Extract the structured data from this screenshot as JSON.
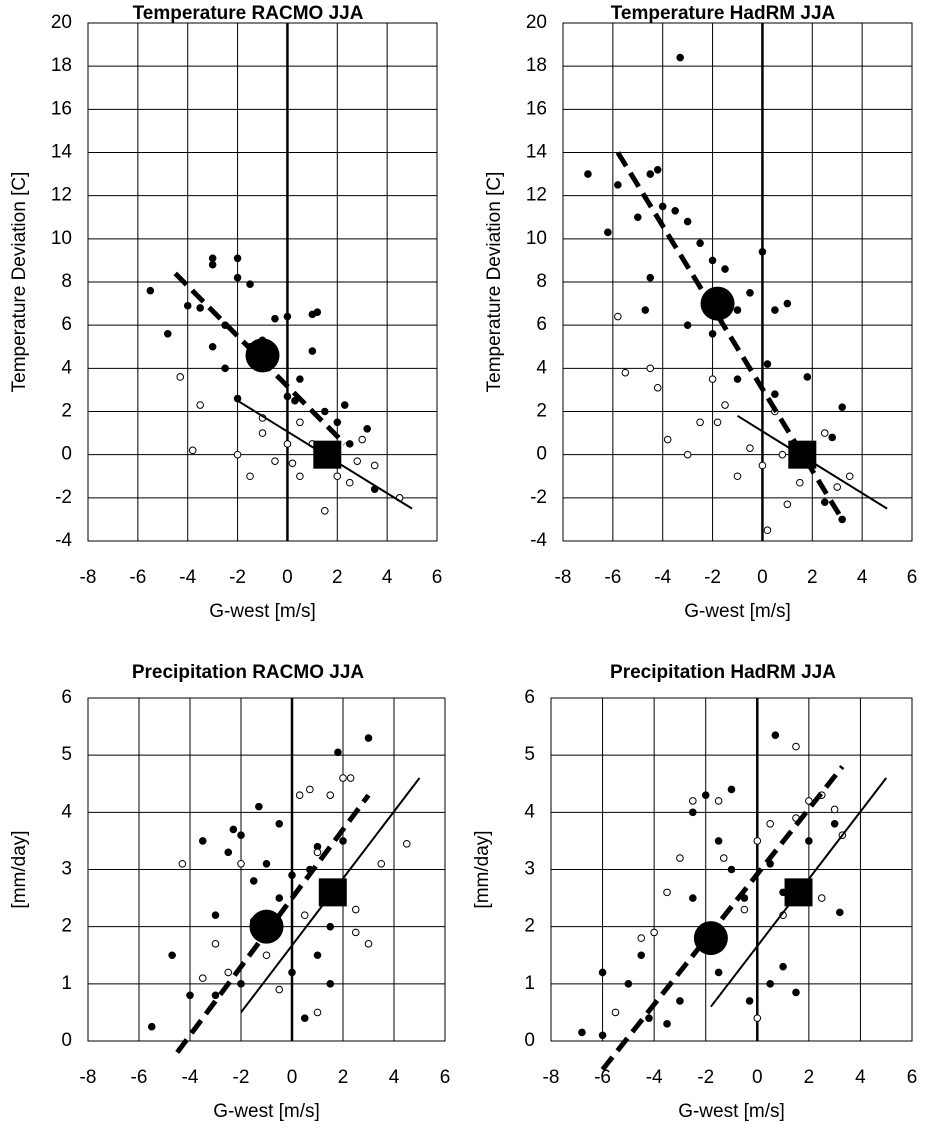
{
  "chart_data": [
    {
      "type": "scatter",
      "title": "Temperature RACMO  JJA",
      "xlabel": "G-west  [m/s]",
      "ylabel": "Temperature Deviation  [C]",
      "xlim": [
        -8,
        6
      ],
      "xticks": [
        -8,
        -6,
        -4,
        -2,
        0,
        2,
        4,
        6
      ],
      "ylim": [
        -4,
        20
      ],
      "yticks": [
        -4,
        -2,
        0,
        2,
        4,
        6,
        8,
        10,
        12,
        14,
        16,
        18,
        20
      ],
      "grid": true,
      "series": [
        {
          "marker": "filled",
          "color": "#000000",
          "x": [
            -5.5,
            -4.8,
            -4,
            -3.5,
            -3,
            -3,
            -2.5,
            -2,
            -2,
            -1.5,
            -1.5,
            -2.5,
            -3,
            -1,
            -0.5,
            0,
            1,
            1.2,
            0.5,
            0,
            1.5,
            2,
            2.3,
            3.2,
            3.5,
            1,
            -2,
            -1,
            0.3,
            2.5
          ],
          "y": [
            7.6,
            5.6,
            6.9,
            6.8,
            9.1,
            8.8,
            6,
            9.1,
            8.2,
            7.9,
            5,
            4,
            5,
            5.3,
            6.3,
            6.4,
            6.5,
            6.6,
            3.5,
            2.7,
            2,
            1.5,
            2.3,
            1.2,
            -1.6,
            4.8,
            2.6,
            4,
            2.5,
            0.5
          ]
        },
        {
          "marker": "open",
          "color": "#000000",
          "x": [
            -4.3,
            -3.8,
            -3.5,
            -2,
            -1.5,
            -1,
            -0.5,
            0,
            0.5,
            0.5,
            1,
            2,
            2.5,
            3,
            3.5,
            4.5,
            1.5,
            -1,
            0.2,
            2.8
          ],
          "y": [
            3.6,
            0.2,
            2.3,
            0,
            -1,
            1,
            -0.3,
            0.5,
            -1,
            1.5,
            0.5,
            -1,
            -1.3,
            0.7,
            -0.5,
            -2,
            -2.6,
            1.7,
            -0.4,
            -0.3
          ]
        },
        {
          "marker": "dashed-line",
          "color": "#000000",
          "x": [
            -4.5,
            2.3
          ],
          "y": [
            8.4,
            0.5
          ]
        },
        {
          "marker": "solid-line",
          "color": "#000000",
          "x": [
            -2,
            5
          ],
          "y": [
            2.5,
            -2.5
          ]
        },
        {
          "marker": "big-circle",
          "color": "#000000",
          "x": [
            -1
          ],
          "y": [
            4.6
          ]
        },
        {
          "marker": "big-square",
          "color": "#000000",
          "x": [
            1.6
          ],
          "y": [
            0
          ]
        }
      ]
    },
    {
      "type": "scatter",
      "title": "Temperature HadRM  JJA",
      "xlabel": "G-west  [m/s]",
      "ylabel": "Temperature Deviation  [C]",
      "xlim": [
        -8,
        6
      ],
      "xticks": [
        -8,
        -6,
        -4,
        -2,
        0,
        2,
        4,
        6
      ],
      "ylim": [
        -4,
        20
      ],
      "yticks": [
        -4,
        -2,
        0,
        2,
        4,
        6,
        8,
        10,
        12,
        14,
        16,
        18,
        20
      ],
      "grid": true,
      "series": [
        {
          "marker": "filled",
          "color": "#000000",
          "x": [
            -7,
            -6.2,
            -5.8,
            -5,
            -4.5,
            -4.2,
            -3.3,
            -4,
            -3.5,
            -4.5,
            -3,
            -2.5,
            -2,
            -1.5,
            -0.5,
            0,
            -1,
            -2,
            0.5,
            1,
            1.8,
            0.2,
            -3,
            -4.7,
            2.8,
            3.2,
            3.2,
            2.5,
            -1,
            0.5
          ],
          "y": [
            13,
            10.3,
            12.5,
            11,
            13,
            13.2,
            18.4,
            11.5,
            11.3,
            8.2,
            10.8,
            9.8,
            9,
            8.6,
            7.5,
            9.4,
            6.7,
            5.6,
            6.7,
            7,
            3.6,
            4.2,
            6,
            6.7,
            0.8,
            2.2,
            -3,
            -2.2,
            3.5,
            2.8
          ]
        },
        {
          "marker": "open",
          "color": "#000000",
          "x": [
            -5.8,
            -5.5,
            -4.2,
            -4.5,
            -3.8,
            -3,
            -2.5,
            -2,
            -1.8,
            -1.5,
            -1,
            -0.5,
            0,
            0.5,
            0.8,
            1.5,
            2,
            2.5,
            3,
            3.5,
            0.2,
            1
          ],
          "y": [
            6.4,
            3.8,
            3.1,
            4,
            0.7,
            0,
            1.5,
            3.5,
            1.5,
            2.3,
            -1,
            0.3,
            -0.5,
            2,
            0,
            -1.3,
            -0.5,
            1,
            -1.5,
            -1,
            -3.5,
            -2.3
          ]
        },
        {
          "marker": "dashed-line",
          "color": "#000000",
          "x": [
            -5.8,
            3.2
          ],
          "y": [
            14,
            -3
          ]
        },
        {
          "marker": "solid-line",
          "color": "#000000",
          "x": [
            -1,
            5
          ],
          "y": [
            1.8,
            -2.5
          ]
        },
        {
          "marker": "big-circle",
          "color": "#000000",
          "x": [
            -1.8
          ],
          "y": [
            7
          ]
        },
        {
          "marker": "big-square",
          "color": "#000000",
          "x": [
            1.6
          ],
          "y": [
            0
          ]
        }
      ]
    },
    {
      "type": "scatter",
      "title": "Precipitation RACMO JJA",
      "xlabel": "G-west  [m/s]",
      "ylabel": "[mm/day]",
      "xlim": [
        -8,
        6
      ],
      "xticks": [
        -8,
        -6,
        -4,
        -2,
        0,
        2,
        4,
        6
      ],
      "ylim": [
        0,
        6
      ],
      "yticks": [
        0,
        1,
        2,
        3,
        4,
        5,
        6
      ],
      "grid": true,
      "series": [
        {
          "marker": "filled",
          "color": "#000000",
          "x": [
            -5.5,
            -4.7,
            -3.5,
            -3,
            -3,
            -2.5,
            -2.3,
            -2,
            -1.5,
            -1.3,
            -1,
            -0.5,
            -0.5,
            0,
            0,
            0.5,
            1,
            1,
            1.5,
            1.8,
            2,
            3,
            1.5,
            -2,
            -4,
            0.7
          ],
          "y": [
            0.25,
            1.5,
            3.5,
            0.8,
            2.2,
            3.3,
            3.7,
            3.6,
            2.8,
            4.1,
            3.1,
            2.5,
            3.8,
            1.2,
            2.9,
            0.4,
            1.5,
            3.4,
            2,
            5.05,
            3.5,
            5.3,
            1,
            1,
            0.8,
            3
          ]
        },
        {
          "marker": "open",
          "color": "#000000",
          "x": [
            -4.3,
            -3.5,
            -3,
            -2.5,
            -2,
            -1.5,
            -1,
            0.3,
            0.7,
            1,
            1.5,
            2,
            2.3,
            2.5,
            3,
            3.5,
            4.5,
            2.5,
            0.5,
            -0.5,
            1
          ],
          "y": [
            3.1,
            1.1,
            1.7,
            1.2,
            3.1,
            2.1,
            1.5,
            4.3,
            4.4,
            3.3,
            4.3,
            4.6,
            4.6,
            1.9,
            1.7,
            3.1,
            3.45,
            2.3,
            2.2,
            0.9,
            0.5
          ]
        },
        {
          "marker": "dashed-line",
          "color": "#000000",
          "x": [
            -4.5,
            3
          ],
          "y": [
            -0.2,
            4.3
          ]
        },
        {
          "marker": "solid-line",
          "color": "#000000",
          "x": [
            -2,
            5
          ],
          "y": [
            0.5,
            4.6
          ]
        },
        {
          "marker": "big-circle",
          "color": "#000000",
          "x": [
            -1
          ],
          "y": [
            2
          ]
        },
        {
          "marker": "big-square",
          "color": "#000000",
          "x": [
            1.6
          ],
          "y": [
            2.6
          ]
        }
      ]
    },
    {
      "type": "scatter",
      "title": "Precipitation HadRM  JJA",
      "xlabel": "G-west  [m/s]",
      "ylabel": "[mm/day]",
      "xlim": [
        -8,
        6
      ],
      "xticks": [
        -8,
        -6,
        -4,
        -2,
        0,
        2,
        4,
        6
      ],
      "ylim": [
        0,
        6
      ],
      "yticks": [
        0,
        1,
        2,
        3,
        4,
        5,
        6
      ],
      "grid": true,
      "series": [
        {
          "marker": "filled",
          "color": "#000000",
          "x": [
            -6.8,
            -6,
            -6,
            -5,
            -4.5,
            -4.2,
            -3.5,
            -3,
            -2.5,
            -2.5,
            -2,
            -1.5,
            -1,
            -1,
            -0.5,
            0.5,
            0.5,
            0.7,
            1,
            1,
            1.5,
            2,
            3,
            3.2,
            -1.5,
            -0.3
          ],
          "y": [
            0.15,
            1.2,
            0.1,
            1,
            1.5,
            0.4,
            0.3,
            0.7,
            2.5,
            4,
            4.3,
            3.5,
            4.4,
            3,
            2.5,
            3.1,
            1,
            5.35,
            2.6,
            1.3,
            0.85,
            3.5,
            3.8,
            2.25,
            1.2,
            0.7
          ]
        },
        {
          "marker": "open",
          "color": "#000000",
          "x": [
            -5.5,
            -4.5,
            -4,
            -3.5,
            -3,
            -2.5,
            -1.5,
            -1.3,
            -0.5,
            0,
            0.5,
            1.5,
            1.5,
            2,
            2.5,
            3,
            3.3,
            2.5,
            0,
            1
          ],
          "y": [
            0.5,
            1.8,
            1.9,
            2.6,
            3.2,
            4.2,
            4.2,
            3.2,
            2.3,
            3.5,
            3.8,
            5.15,
            3.9,
            4.2,
            4.3,
            4.05,
            3.6,
            2.5,
            0.4,
            2.2
          ]
        },
        {
          "marker": "dashed-line",
          "color": "#000000",
          "x": [
            -6,
            3.3
          ],
          "y": [
            -0.5,
            4.8
          ]
        },
        {
          "marker": "solid-line",
          "color": "#000000",
          "x": [
            -1.8,
            5
          ],
          "y": [
            0.6,
            4.6
          ]
        },
        {
          "marker": "big-circle",
          "color": "#000000",
          "x": [
            -1.8
          ],
          "y": [
            1.8
          ]
        },
        {
          "marker": "big-square",
          "color": "#000000",
          "x": [
            1.6
          ],
          "y": [
            2.6
          ]
        }
      ]
    }
  ]
}
